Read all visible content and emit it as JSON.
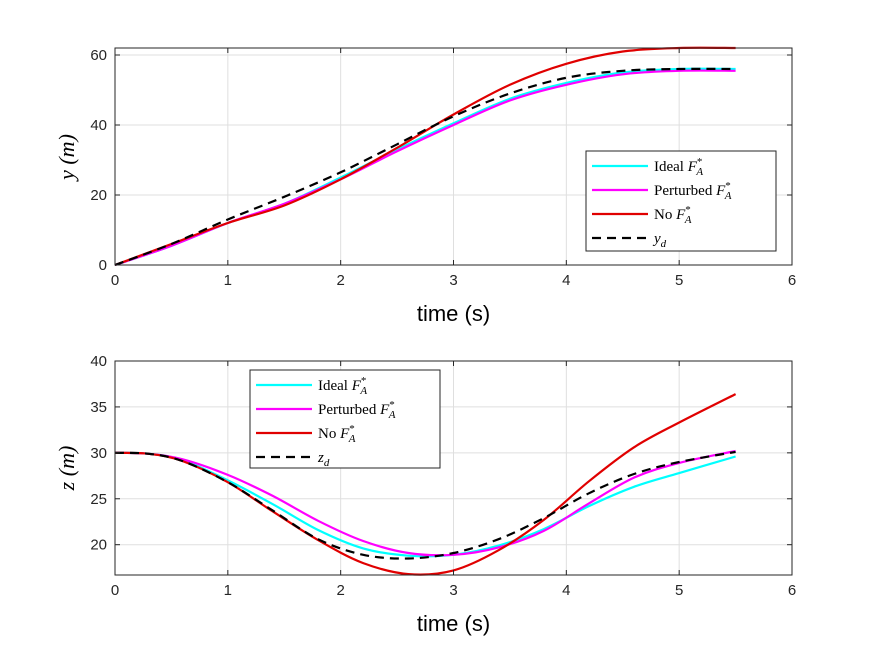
{
  "chart_data": [
    {
      "type": "line",
      "xlabel": "time (s)",
      "ylabel": "y (m)",
      "xlim": [
        0,
        6
      ],
      "ylim": [
        0,
        62
      ],
      "xticks": [
        0,
        1,
        2,
        3,
        4,
        5,
        6
      ],
      "yticks": [
        0,
        20,
        40,
        60
      ],
      "grid": true,
      "legend_position": "bottom-right",
      "x": [
        0,
        0.5,
        1,
        1.5,
        2,
        2.5,
        3,
        3.5,
        4,
        4.5,
        5,
        5.5
      ],
      "series": [
        {
          "name": "Ideal F*_A",
          "label_main": "Ideal F",
          "label_sub": "A",
          "color": "#00ffff",
          "dash": "solid",
          "values": [
            0,
            5.5,
            12,
            17.5,
            25,
            33,
            40.5,
            47.5,
            52,
            55,
            56,
            56
          ]
        },
        {
          "name": "Perturbed F*_A",
          "label_main": "Perturbed F",
          "label_sub": "A",
          "color": "#ff00ff",
          "dash": "solid",
          "values": [
            0,
            5.5,
            12,
            17.5,
            24.5,
            32.5,
            40,
            47,
            51.5,
            54.5,
            55.5,
            55.5
          ]
        },
        {
          "name": "No F*_A",
          "label_main": "No F",
          "label_sub": "A",
          "color": "#e00000",
          "dash": "solid",
          "values": [
            0,
            6,
            12,
            17,
            24.5,
            33.5,
            43,
            51.5,
            57.5,
            61,
            62,
            62
          ]
        },
        {
          "name": "y_d",
          "label_main": "y",
          "label_sub": "d",
          "color": "#000000",
          "dash": "dashed",
          "values": [
            0,
            6,
            13,
            19.5,
            26.5,
            34.5,
            42.5,
            49,
            53.5,
            55.5,
            56,
            56
          ]
        }
      ]
    },
    {
      "type": "line",
      "xlabel": "time (s)",
      "ylabel": "z (m)",
      "xlim": [
        0,
        6
      ],
      "ylim": [
        16.7,
        40
      ],
      "xticks": [
        0,
        1,
        2,
        3,
        4,
        5,
        6
      ],
      "yticks": [
        20,
        25,
        30,
        35,
        40
      ],
      "grid": true,
      "legend_position": "top-left",
      "x": [
        0,
        0.3,
        0.6,
        1,
        1.4,
        1.8,
        2.2,
        2.6,
        3,
        3.4,
        3.8,
        4.2,
        4.6,
        5,
        5.5
      ],
      "series": [
        {
          "name": "Ideal F*_A",
          "label_main": "Ideal F",
          "label_sub": "A",
          "color": "#00ffff",
          "dash": "solid",
          "values": [
            30,
            29.9,
            29.2,
            27,
            24.4,
            21.6,
            19.6,
            18.8,
            18.9,
            19.9,
            21.7,
            24.2,
            26.3,
            27.8,
            29.6
          ]
        },
        {
          "name": "Perturbed F*_A",
          "label_main": "Perturbed F",
          "label_sub": "A",
          "color": "#ff00ff",
          "dash": "solid",
          "values": [
            30,
            29.9,
            29.3,
            27.6,
            25.3,
            22.6,
            20.4,
            19.1,
            18.9,
            19.7,
            21.5,
            24.5,
            27.3,
            28.9,
            30.2
          ]
        },
        {
          "name": "No F*_A",
          "label_main": "No F",
          "label_sub": "A",
          "color": "#e00000",
          "dash": "solid",
          "values": [
            30,
            29.9,
            29.1,
            26.8,
            23.6,
            20.5,
            18,
            16.8,
            17.2,
            19.4,
            22.7,
            26.9,
            30.6,
            33.3,
            36.4
          ]
        },
        {
          "name": "z_d",
          "label_main": "z",
          "label_sub": "d",
          "color": "#000000",
          "dash": "dashed",
          "values": [
            30,
            29.9,
            29.1,
            26.8,
            23.7,
            20.6,
            18.9,
            18.5,
            19.1,
            20.6,
            22.9,
            25.6,
            27.7,
            29,
            30.1
          ]
        }
      ]
    }
  ]
}
